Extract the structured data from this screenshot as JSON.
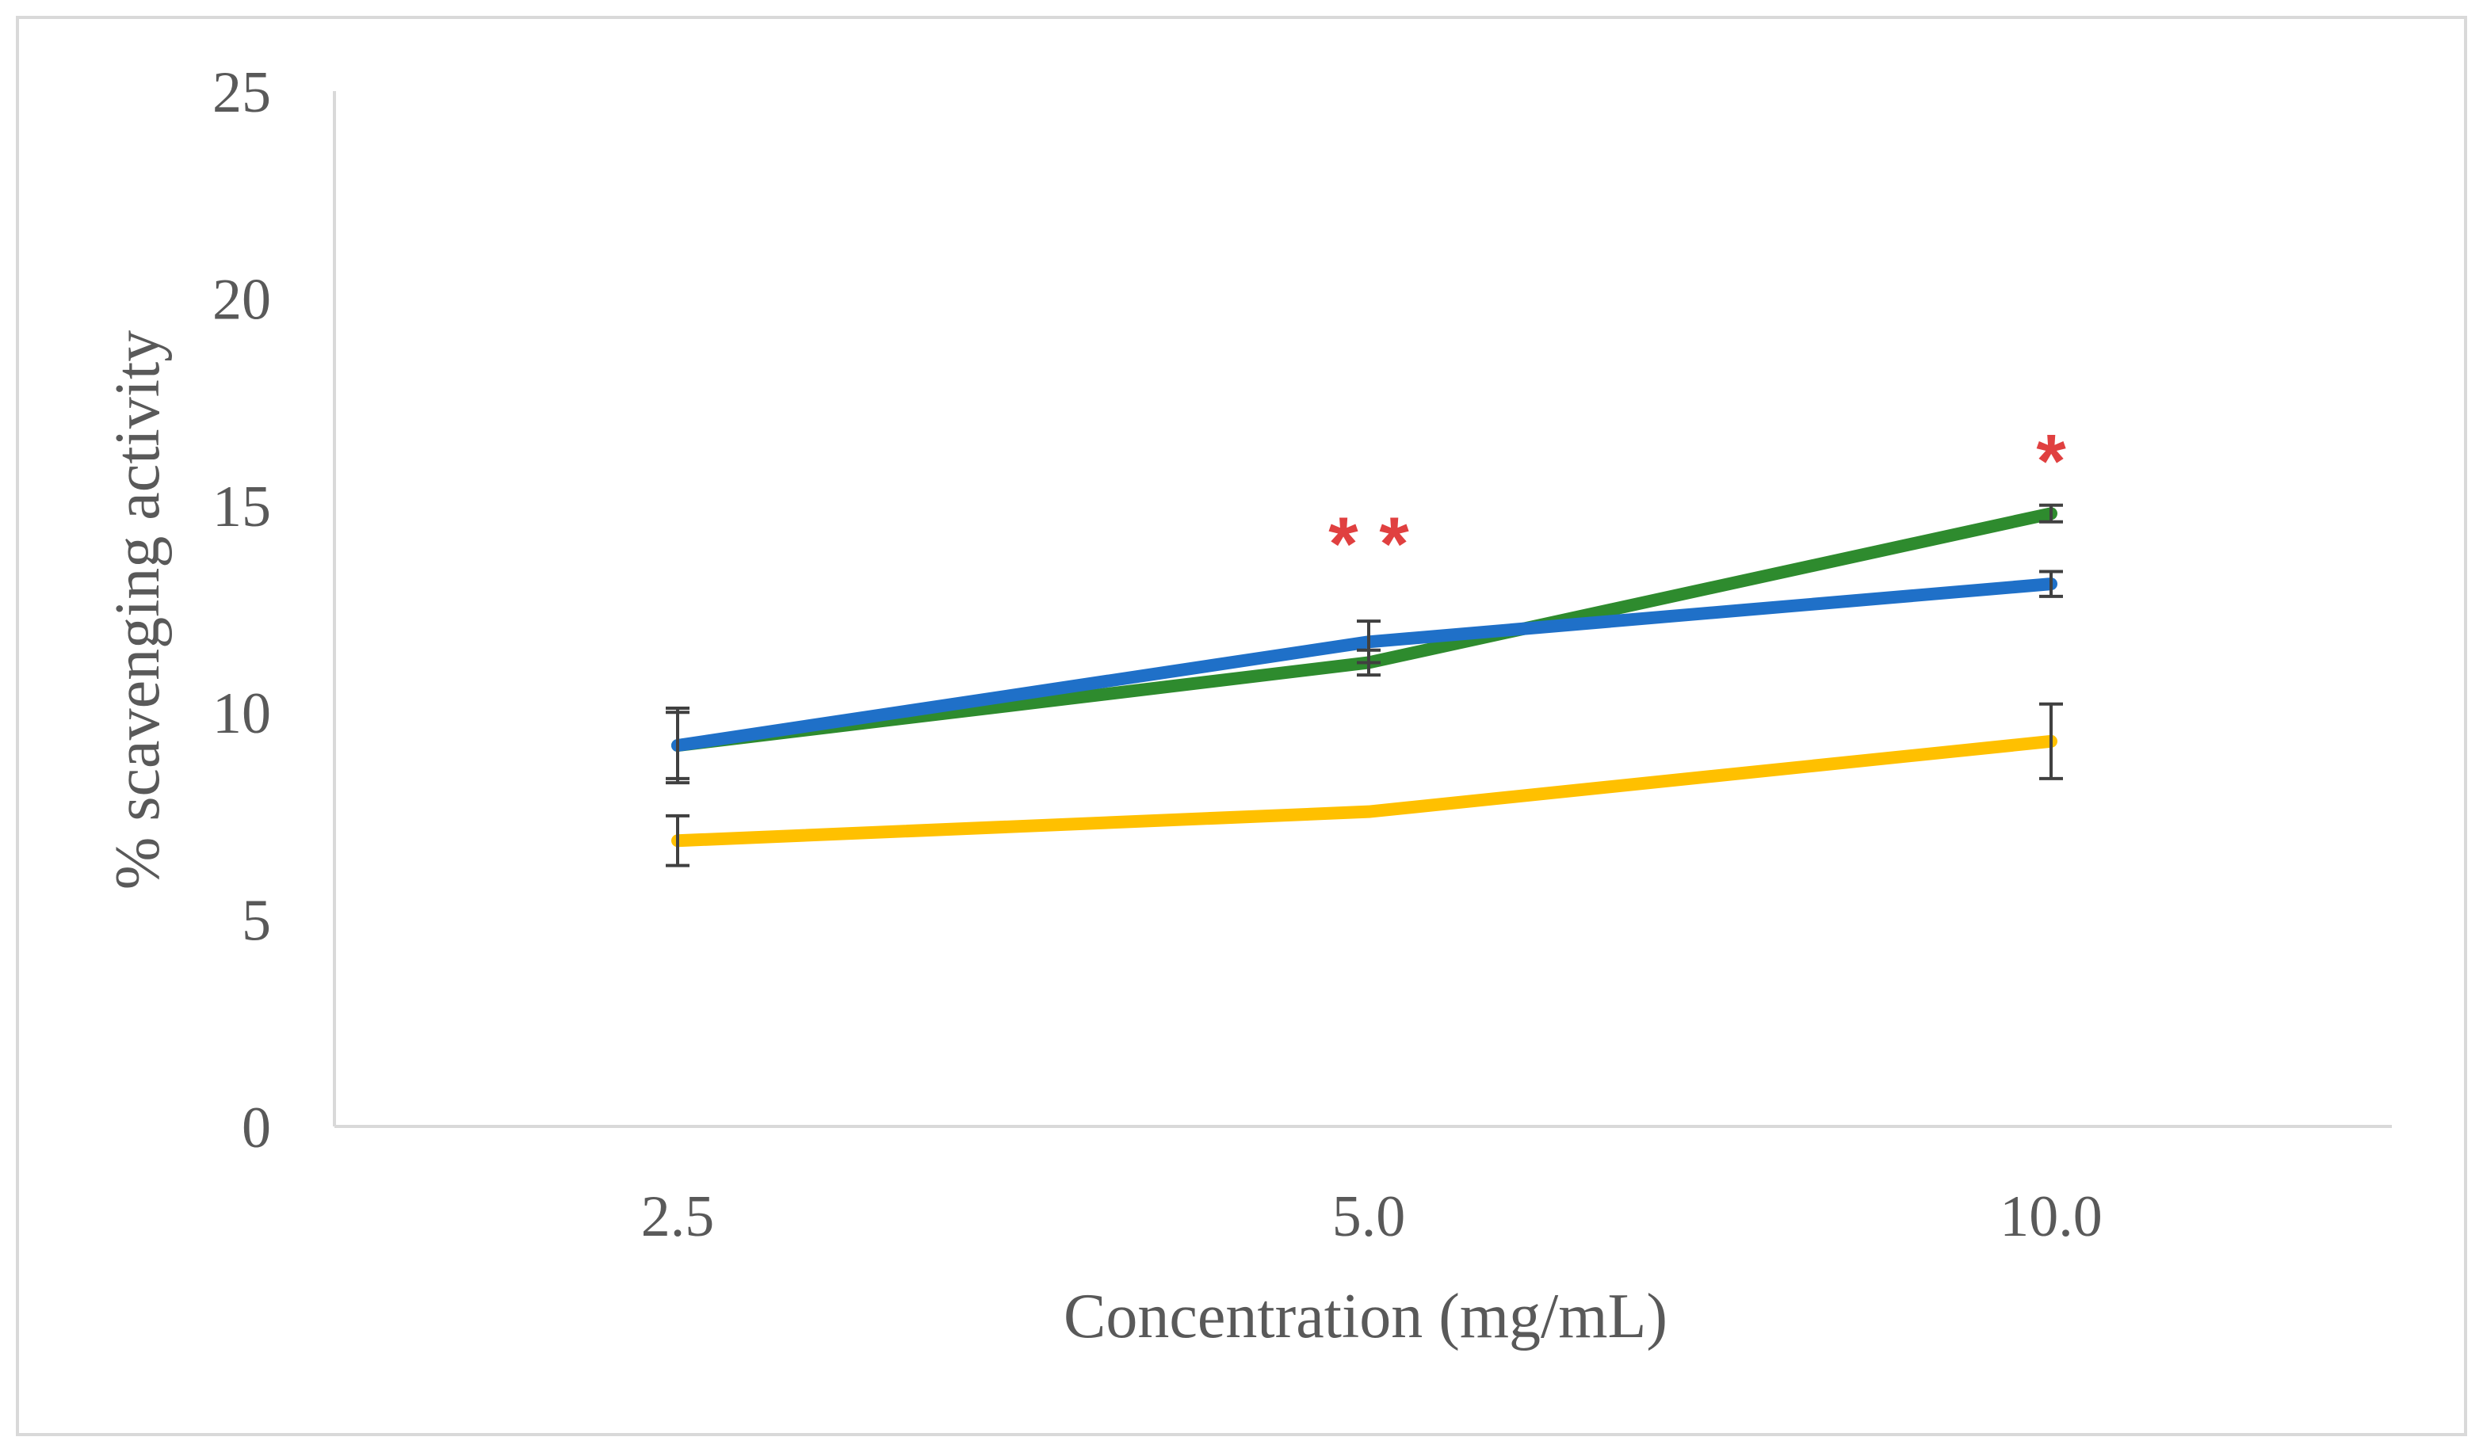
{
  "chart_data": {
    "type": "line",
    "title": "",
    "xlabel": "Concentration (mg/mL)",
    "ylabel": "% scavenging activity",
    "categories": [
      "2.5",
      "5.0",
      "10.0"
    ],
    "ylim": [
      0,
      25
    ],
    "yticks": [
      0,
      5,
      10,
      15,
      20,
      25
    ],
    "grid": false,
    "legend": "none",
    "series": [
      {
        "name": "green",
        "color": "#2e8b2e",
        "values": [
          9.2,
          11.2,
          14.8
        ],
        "errors": [
          0.9,
          0.3,
          0.2
        ]
      },
      {
        "name": "blue",
        "color": "#1f70c8",
        "values": [
          9.2,
          11.7,
          13.1
        ],
        "errors": [
          0.8,
          0.5,
          0.3
        ]
      },
      {
        "name": "yellow",
        "color": "#ffc000",
        "values": [
          6.9,
          7.6,
          9.3
        ],
        "errors": [
          0.6,
          0.0,
          0.9
        ]
      }
    ],
    "annotations": [
      {
        "text": "**",
        "category": "5.0",
        "value": 14.2,
        "color": "#e04040"
      },
      {
        "text": "*",
        "category": "10.0",
        "value": 16.2,
        "color": "#e04040"
      }
    ],
    "axis_color": "#d9d9d9",
    "frame_color": "#d9d9d9",
    "errorbar_color": "#404040"
  }
}
